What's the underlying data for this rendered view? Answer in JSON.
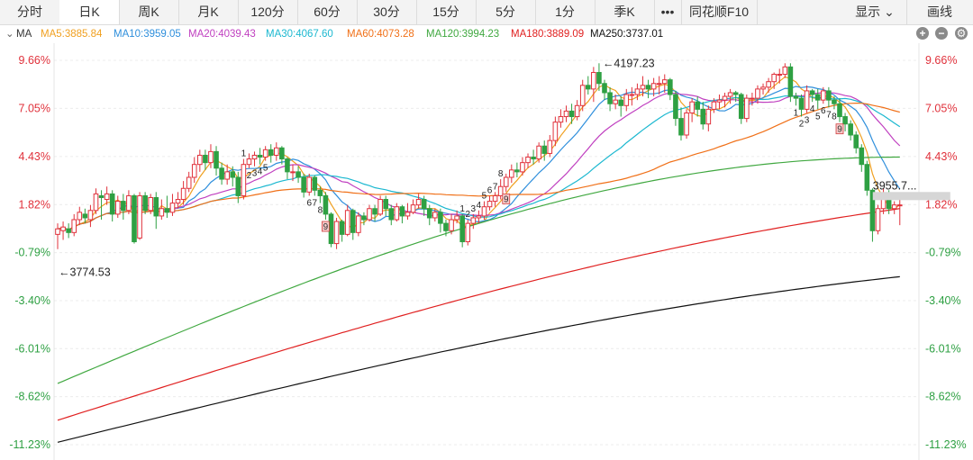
{
  "tabs": [
    {
      "label": "分时",
      "active": false
    },
    {
      "label": "日K",
      "active": true
    },
    {
      "label": "周K",
      "active": false
    },
    {
      "label": "月K",
      "active": false
    },
    {
      "label": "120分",
      "active": false
    },
    {
      "label": "60分",
      "active": false
    },
    {
      "label": "30分",
      "active": false
    },
    {
      "label": "15分",
      "active": false
    },
    {
      "label": "5分",
      "active": false
    },
    {
      "label": "1分",
      "active": false
    },
    {
      "label": "季K",
      "active": false
    },
    {
      "label": "•••",
      "active": false
    },
    {
      "label": "同花顺F10",
      "active": false
    }
  ],
  "right_tabs": {
    "display_label": "显示",
    "draw_label": "画线"
  },
  "indicator": {
    "name": "MA",
    "items": [
      {
        "label": "MA5:3885.84",
        "color": "#f0a020"
      },
      {
        "label": "MA10:3959.05",
        "color": "#2f8fdc"
      },
      {
        "label": "MA20:4039.43",
        "color": "#c040c0"
      },
      {
        "label": "MA30:4067.60",
        "color": "#1cb8d0"
      },
      {
        "label": "MA60:4073.28",
        "color": "#f07018"
      },
      {
        "label": "MA120:3994.23",
        "color": "#40a840"
      },
      {
        "label": "MA180:3889.09",
        "color": "#e02020"
      },
      {
        "label": "MA250:3737.01",
        "color": "#111111"
      }
    ]
  },
  "chart_data": {
    "type": "candlestick",
    "y_axis_percent_ticks": [
      "9.66%",
      "7.05%",
      "4.43%",
      "1.82%",
      "-0.79%",
      "-3.40%",
      "-6.01%",
      "-8.62%",
      "-11.23%"
    ],
    "ylim_percent": [
      -11.23,
      9.66
    ],
    "colors": {
      "up": "#e0313b",
      "down": "#2ea043",
      "positive_label": "#e0313b",
      "negative_label": "#2ea043"
    },
    "high_label": "←4197.23",
    "low_label": "←3774.53",
    "last_price_label": "3955.7...",
    "candles_percent": [
      [
        0.2,
        0.5,
        -0.6,
        0.8
      ],
      [
        0.4,
        0.6,
        -0.1,
        0.9
      ],
      [
        0.5,
        0.3,
        0.0,
        0.8
      ],
      [
        0.3,
        1.0,
        0.1,
        1.3
      ],
      [
        1.0,
        1.4,
        0.7,
        1.7
      ],
      [
        1.3,
        1.1,
        0.8,
        1.6
      ],
      [
        1.0,
        1.5,
        0.6,
        1.8
      ],
      [
        1.5,
        2.4,
        1.3,
        2.7
      ],
      [
        2.3,
        2.2,
        1.0,
        2.6
      ],
      [
        2.1,
        2.4,
        1.8,
        2.8
      ],
      [
        2.4,
        1.3,
        0.9,
        2.6
      ],
      [
        1.3,
        2.0,
        1.1,
        2.3
      ],
      [
        2.0,
        1.5,
        1.0,
        2.4
      ],
      [
        1.5,
        2.3,
        1.3,
        2.6
      ],
      [
        2.3,
        -0.2,
        -0.3,
        2.4
      ],
      [
        0.0,
        2.3,
        -0.1,
        2.5
      ],
      [
        2.3,
        1.5,
        1.3,
        2.5
      ],
      [
        1.5,
        2.2,
        1.3,
        2.4
      ],
      [
        2.2,
        1.2,
        0.5,
        2.5
      ],
      [
        1.2,
        1.6,
        1.0,
        2.1
      ],
      [
        1.6,
        1.4,
        1.1,
        2.3
      ],
      [
        1.4,
        1.9,
        1.2,
        2.4
      ],
      [
        1.9,
        2.1,
        1.6,
        2.5
      ],
      [
        2.1,
        2.7,
        1.8,
        3.1
      ],
      [
        2.7,
        3.3,
        2.5,
        3.6
      ],
      [
        3.3,
        4.0,
        3.0,
        4.4
      ],
      [
        4.0,
        4.5,
        3.6,
        4.8
      ],
      [
        4.5,
        4.1,
        3.7,
        4.8
      ],
      [
        4.1,
        4.7,
        3.8,
        5.1
      ],
      [
        4.7,
        3.8,
        3.4,
        5.0
      ],
      [
        3.8,
        3.2,
        2.9,
        4.1
      ],
      [
        3.2,
        3.6,
        2.9,
        4.0
      ],
      [
        3.6,
        3.3,
        2.8,
        3.9
      ],
      [
        3.3,
        2.3,
        1.9,
        3.6
      ],
      [
        2.3,
        4.0,
        2.1,
        4.3
      ],
      [
        4.0,
        4.3,
        3.8,
        4.6
      ],
      [
        4.3,
        4.5,
        3.9,
        4.7
      ],
      [
        4.5,
        4.4,
        4.0,
        4.9
      ],
      [
        4.4,
        4.8,
        4.2,
        5.0
      ],
      [
        4.8,
        4.5,
        4.1,
        5.1
      ],
      [
        4.5,
        4.9,
        4.2,
        5.2
      ],
      [
        4.9,
        4.3,
        4.0,
        5.0
      ],
      [
        4.3,
        3.6,
        3.2,
        4.4
      ],
      [
        3.6,
        3.6,
        3.1,
        4.0
      ],
      [
        3.6,
        3.3,
        3.0,
        3.9
      ],
      [
        3.3,
        2.5,
        2.2,
        3.5
      ],
      [
        2.5,
        3.3,
        2.3,
        3.5
      ],
      [
        3.3,
        2.6,
        2.3,
        3.4
      ],
      [
        2.6,
        2.3,
        1.9,
        2.8
      ],
      [
        2.3,
        1.3,
        1.0,
        2.5
      ],
      [
        1.3,
        -0.3,
        -0.5,
        1.4
      ],
      [
        -0.3,
        0.9,
        -0.6,
        1.1
      ],
      [
        0.9,
        0.2,
        -0.2,
        1.0
      ],
      [
        0.2,
        1.5,
        0.1,
        1.8
      ],
      [
        1.5,
        0.3,
        -0.1,
        1.6
      ],
      [
        0.3,
        1.2,
        0.1,
        1.4
      ],
      [
        1.2,
        1.0,
        0.7,
        1.4
      ],
      [
        1.0,
        1.6,
        0.9,
        1.8
      ],
      [
        1.6,
        1.3,
        0.9,
        1.8
      ],
      [
        1.3,
        2.1,
        1.2,
        2.3
      ],
      [
        2.1,
        1.6,
        1.2,
        2.3
      ],
      [
        1.6,
        1.0,
        0.7,
        1.8
      ],
      [
        1.0,
        1.7,
        0.9,
        1.9
      ],
      [
        1.7,
        1.2,
        0.8,
        1.8
      ],
      [
        1.2,
        1.4,
        1.0,
        1.9
      ],
      [
        1.4,
        1.8,
        1.3,
        2.1
      ],
      [
        1.8,
        2.1,
        1.6,
        2.4
      ],
      [
        2.1,
        1.6,
        1.2,
        2.3
      ],
      [
        1.6,
        1.1,
        0.7,
        1.8
      ],
      [
        1.1,
        1.4,
        0.9,
        1.6
      ],
      [
        1.4,
        0.8,
        0.3,
        1.6
      ],
      [
        0.8,
        0.4,
        0.1,
        1.0
      ],
      [
        0.4,
        1.0,
        0.2,
        1.3
      ],
      [
        1.0,
        1.2,
        0.8,
        1.5
      ],
      [
        1.2,
        -0.2,
        -0.5,
        1.3
      ],
      [
        -0.2,
        0.8,
        -0.4,
        1.0
      ],
      [
        0.8,
        1.1,
        0.5,
        1.3
      ],
      [
        1.1,
        1.2,
        0.8,
        1.5
      ],
      [
        1.2,
        1.7,
        1.0,
        2.0
      ],
      [
        1.7,
        2.0,
        1.5,
        2.3
      ],
      [
        2.0,
        2.3,
        1.7,
        2.5
      ],
      [
        2.3,
        2.8,
        2.1,
        3.2
      ],
      [
        2.8,
        3.3,
        2.5,
        3.5
      ],
      [
        3.3,
        3.7,
        3.0,
        4.0
      ],
      [
        3.7,
        3.6,
        3.3,
        4.1
      ],
      [
        3.6,
        4.1,
        3.4,
        4.4
      ],
      [
        4.1,
        4.4,
        3.8,
        4.6
      ],
      [
        4.4,
        4.3,
        4.0,
        4.8
      ],
      [
        4.3,
        5.0,
        4.1,
        5.2
      ],
      [
        5.0,
        4.6,
        4.2,
        5.3
      ],
      [
        4.6,
        5.3,
        4.4,
        5.6
      ],
      [
        5.3,
        6.3,
        5.0,
        6.6
      ],
      [
        6.3,
        6.6,
        6.0,
        7.0
      ],
      [
        6.6,
        6.9,
        6.3,
        7.2
      ],
      [
        6.9,
        6.6,
        6.2,
        7.3
      ],
      [
        6.6,
        7.2,
        6.4,
        7.5
      ],
      [
        7.2,
        8.3,
        6.9,
        8.6
      ],
      [
        8.3,
        8.1,
        7.8,
        8.8
      ],
      [
        8.1,
        9.0,
        7.4,
        9.3
      ],
      [
        9.0,
        8.4,
        8.0,
        9.5
      ],
      [
        8.4,
        7.9,
        7.5,
        8.6
      ],
      [
        7.9,
        7.3,
        6.9,
        8.2
      ],
      [
        7.3,
        7.5,
        7.0,
        7.8
      ],
      [
        7.5,
        7.2,
        6.6,
        7.7
      ],
      [
        7.2,
        7.8,
        6.9,
        8.1
      ],
      [
        7.8,
        7.8,
        7.2,
        8.2
      ],
      [
        7.8,
        8.1,
        7.5,
        8.4
      ],
      [
        8.1,
        8.3,
        7.7,
        8.8
      ],
      [
        8.3,
        8.1,
        7.6,
        8.6
      ],
      [
        8.1,
        8.4,
        7.7,
        8.7
      ],
      [
        8.4,
        8.4,
        7.8,
        8.8
      ],
      [
        8.4,
        8.6,
        7.9,
        8.9
      ],
      [
        8.6,
        7.8,
        7.5,
        8.7
      ],
      [
        7.8,
        6.5,
        6.1,
        8.0
      ],
      [
        6.5,
        5.6,
        5.3,
        7.1
      ],
      [
        5.6,
        6.8,
        5.4,
        7.0
      ],
      [
        6.8,
        7.4,
        6.3,
        7.6
      ],
      [
        7.4,
        7.0,
        6.6,
        7.7
      ],
      [
        7.0,
        6.2,
        5.9,
        7.4
      ],
      [
        6.2,
        7.0,
        5.8,
        7.2
      ],
      [
        7.0,
        7.4,
        6.8,
        7.6
      ],
      [
        7.4,
        7.5,
        7.0,
        7.8
      ],
      [
        7.5,
        7.7,
        7.1,
        7.9
      ],
      [
        7.7,
        7.9,
        7.3,
        8.1
      ],
      [
        7.9,
        7.8,
        7.4,
        8.0
      ],
      [
        7.8,
        6.5,
        6.2,
        7.9
      ],
      [
        6.5,
        7.6,
        6.3,
        7.8
      ],
      [
        7.6,
        7.6,
        7.2,
        7.9
      ],
      [
        7.6,
        8.1,
        7.3,
        8.3
      ],
      [
        8.1,
        8.2,
        7.8,
        8.4
      ],
      [
        8.2,
        8.5,
        7.9,
        8.7
      ],
      [
        8.5,
        8.9,
        8.1,
        9.0
      ],
      [
        8.9,
        8.9,
        8.4,
        9.2
      ],
      [
        8.9,
        9.3,
        8.7,
        9.5
      ],
      [
        9.3,
        7.7,
        7.4,
        9.5
      ],
      [
        7.7,
        7.6,
        7.2,
        7.9
      ],
      [
        7.6,
        7.0,
        6.6,
        7.8
      ],
      [
        7.0,
        8.0,
        6.8,
        8.3
      ],
      [
        8.0,
        7.8,
        7.4,
        8.1
      ],
      [
        7.8,
        7.5,
        7.0,
        8.1
      ],
      [
        7.5,
        8.0,
        7.3,
        8.2
      ],
      [
        8.0,
        7.5,
        7.1,
        8.2
      ],
      [
        7.5,
        7.3,
        7.0,
        7.7
      ],
      [
        7.3,
        6.6,
        6.3,
        7.6
      ],
      [
        6.6,
        6.2,
        5.8,
        6.8
      ],
      [
        6.2,
        5.6,
        5.3,
        6.4
      ],
      [
        5.6,
        4.9,
        4.6,
        5.8
      ],
      [
        4.9,
        4.0,
        3.6,
        5.1
      ],
      [
        4.0,
        2.6,
        2.3,
        4.2
      ],
      [
        2.6,
        0.4,
        -0.2,
        2.7
      ],
      [
        0.4,
        1.6,
        0.2,
        1.8
      ],
      [
        1.6,
        2.4,
        1.3,
        2.7
      ],
      [
        2.4,
        1.6,
        1.3,
        2.6
      ],
      [
        1.6,
        1.8,
        1.3,
        2.0
      ],
      [
        1.8,
        1.8,
        0.7,
        2.3
      ]
    ],
    "ma_paths_percent": [
      {
        "name": "MA5",
        "color": "#f0a020"
      },
      {
        "name": "MA10",
        "color": "#2f8fdc"
      },
      {
        "name": "MA20",
        "color": "#c040c0"
      },
      {
        "name": "MA30",
        "color": "#1cb8d0"
      },
      {
        "name": "MA60",
        "color": "#f07018"
      },
      {
        "name": "MA120",
        "color": "#40a840"
      },
      {
        "name": "MA180",
        "color": "#e02020"
      },
      {
        "name": "MA250",
        "color": "#111111"
      }
    ],
    "markers": [
      {
        "idx": 34,
        "label": "1",
        "side": "above"
      },
      {
        "idx": 35,
        "label": "2",
        "side": "below"
      },
      {
        "idx": 36,
        "label": "3",
        "side": "below"
      },
      {
        "idx": 37,
        "label": "4",
        "side": "below"
      },
      {
        "idx": 38,
        "label": "5",
        "side": "below"
      },
      {
        "idx": 46,
        "label": "6",
        "side": "below"
      },
      {
        "idx": 47,
        "label": "7",
        "side": "below"
      },
      {
        "idx": 48,
        "label": "8",
        "side": "below"
      },
      {
        "idx": 49,
        "label": "9",
        "side": "box"
      },
      {
        "idx": 74,
        "label": "1",
        "side": "above"
      },
      {
        "idx": 75,
        "label": "2",
        "side": "above"
      },
      {
        "idx": 76,
        "label": "3",
        "side": "above"
      },
      {
        "idx": 77,
        "label": "4",
        "side": "above"
      },
      {
        "idx": 78,
        "label": "5",
        "side": "above"
      },
      {
        "idx": 79,
        "label": "6",
        "side": "above"
      },
      {
        "idx": 80,
        "label": "7",
        "side": "above"
      },
      {
        "idx": 81,
        "label": "8",
        "side": "above"
      },
      {
        "idx": 82,
        "label": "9",
        "side": "box"
      },
      {
        "idx": 135,
        "label": "1",
        "side": "below"
      },
      {
        "idx": 136,
        "label": "2",
        "side": "below"
      },
      {
        "idx": 137,
        "label": "3",
        "side": "below"
      },
      {
        "idx": 138,
        "label": "4",
        "side": "below"
      },
      {
        "idx": 139,
        "label": "5",
        "side": "below"
      },
      {
        "idx": 140,
        "label": "6",
        "side": "below"
      },
      {
        "idx": 141,
        "label": "7",
        "side": "below"
      },
      {
        "idx": 142,
        "label": "8",
        "side": "below"
      },
      {
        "idx": 143,
        "label": "9",
        "side": "box"
      }
    ]
  }
}
